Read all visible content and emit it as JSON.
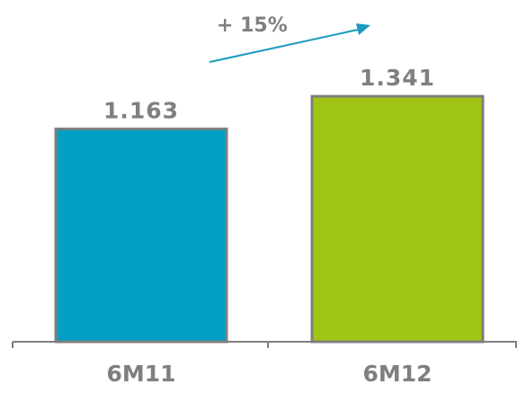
{
  "chart_data": {
    "type": "bar",
    "title": "",
    "xlabel": "",
    "ylabel": "",
    "categories": [
      "6M11",
      "6M12"
    ],
    "values": [
      1163,
      1341
    ],
    "value_labels": [
      "1.163",
      "1.341"
    ],
    "ylim": [
      0,
      1500
    ],
    "grid": false,
    "bar_colors": [
      "#009fc6",
      "#a0c514"
    ],
    "bar_outline_color": "#7f7f7f",
    "axis_color": "#7f7f7f",
    "label_color": "#7f7f7f",
    "annotation": {
      "text": "+ 15%",
      "arrow_color": "#1a9bbf"
    }
  }
}
